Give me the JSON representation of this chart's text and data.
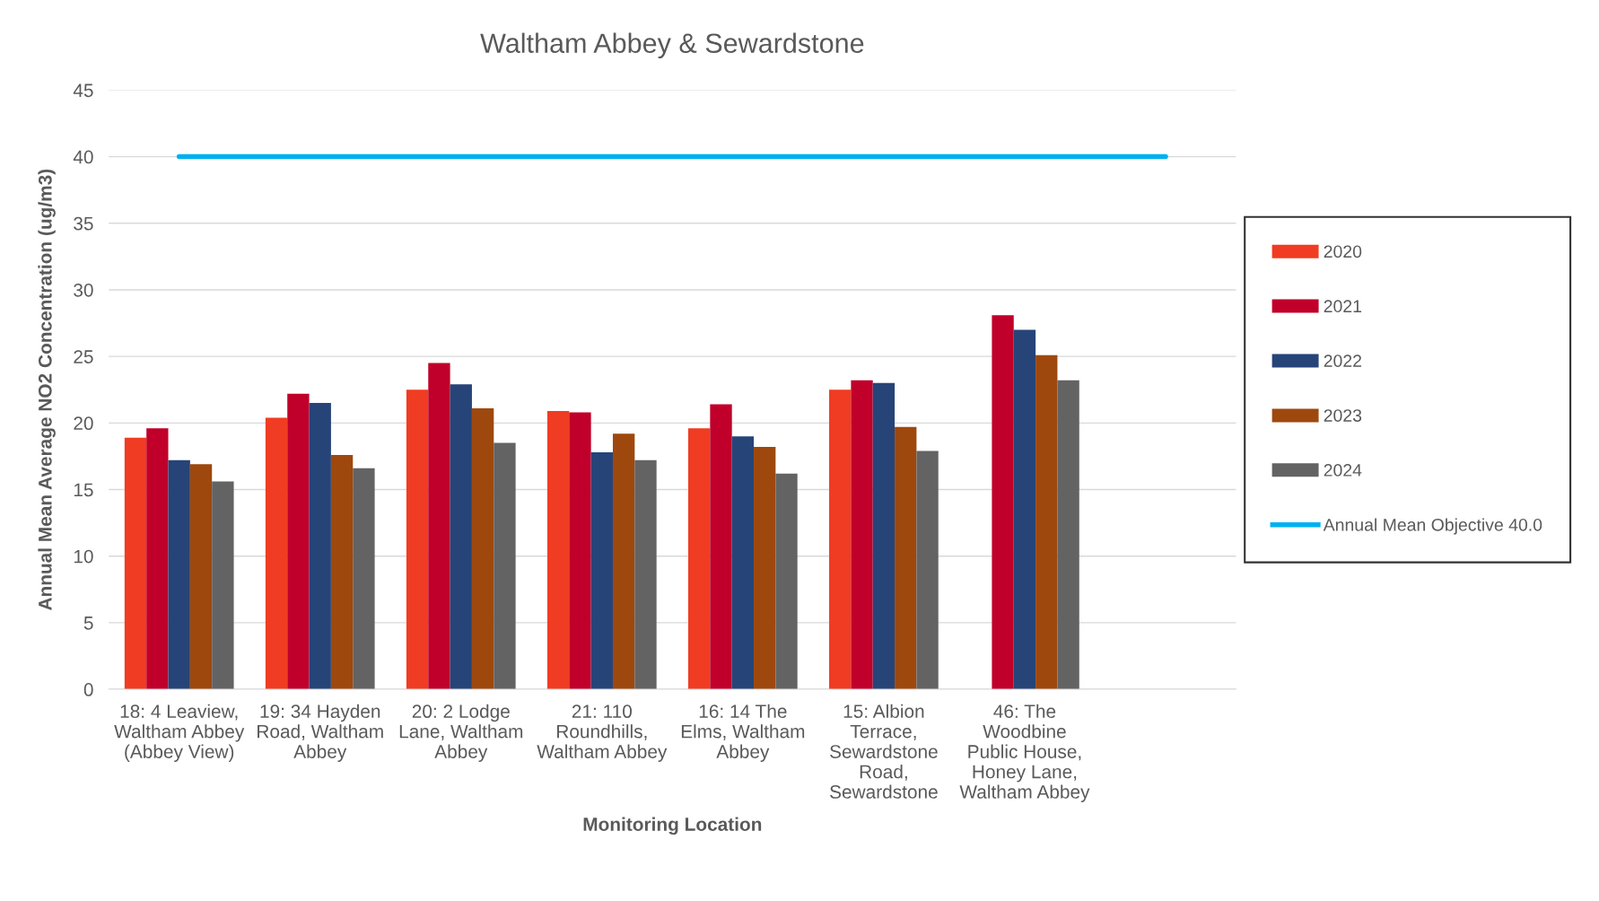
{
  "chart_data": {
    "type": "bar",
    "title": "Waltham Abbey & Sewardstone",
    "xlabel": "Monitoring Location",
    "ylabel": "Annual Mean Average NO2 Concentration (ug/m3)",
    "categories": [
      "18: 4 Leaview,\nWaltham Abbey\n(Abbey View)",
      "19: 34 Hayden\nRoad, Waltham\nAbbey",
      "20: 2 Lodge\nLane, Waltham\nAbbey",
      "21: 110\nRoundhills,\nWaltham Abbey",
      "16: 14 The\nElms, Waltham\nAbbey",
      "15: Albion\nTerrace,\nSewardstone\nRoad,\nSewardstone",
      "46: The\nWoodbine\nPublic House,\nHoney Lane,\nWaltham Abbey",
      null
    ],
    "series": [
      {
        "name": "2020",
        "color": "#f03c22",
        "values": [
          18.9,
          20.4,
          22.5,
          20.9,
          19.6,
          22.5,
          null,
          null
        ]
      },
      {
        "name": "2021",
        "color": "#c0002a",
        "values": [
          19.6,
          22.2,
          24.5,
          20.8,
          21.4,
          23.2,
          28.1,
          null
        ]
      },
      {
        "name": "2022",
        "color": "#264478",
        "values": [
          17.2,
          21.5,
          22.9,
          17.8,
          19.0,
          23.0,
          27.0,
          null
        ]
      },
      {
        "name": "2023",
        "color": "#9e480e",
        "values": [
          16.9,
          17.6,
          21.1,
          19.2,
          18.2,
          19.7,
          25.1,
          null
        ]
      },
      {
        "name": "2024",
        "color": "#636363",
        "values": [
          15.6,
          16.6,
          18.5,
          17.2,
          16.2,
          17.9,
          23.2,
          null
        ]
      },
      {
        "name": "Annual Mean Objective 40.0",
        "color": "#00b0f0",
        "type": "line",
        "values": [
          40,
          40,
          40,
          40,
          40,
          40,
          40,
          40
        ]
      }
    ],
    "ylim": [
      0,
      45
    ],
    "yticks": [
      0,
      5,
      10,
      15,
      20,
      25,
      30,
      35,
      40,
      45
    ],
    "grid": "y",
    "legend": "right"
  }
}
